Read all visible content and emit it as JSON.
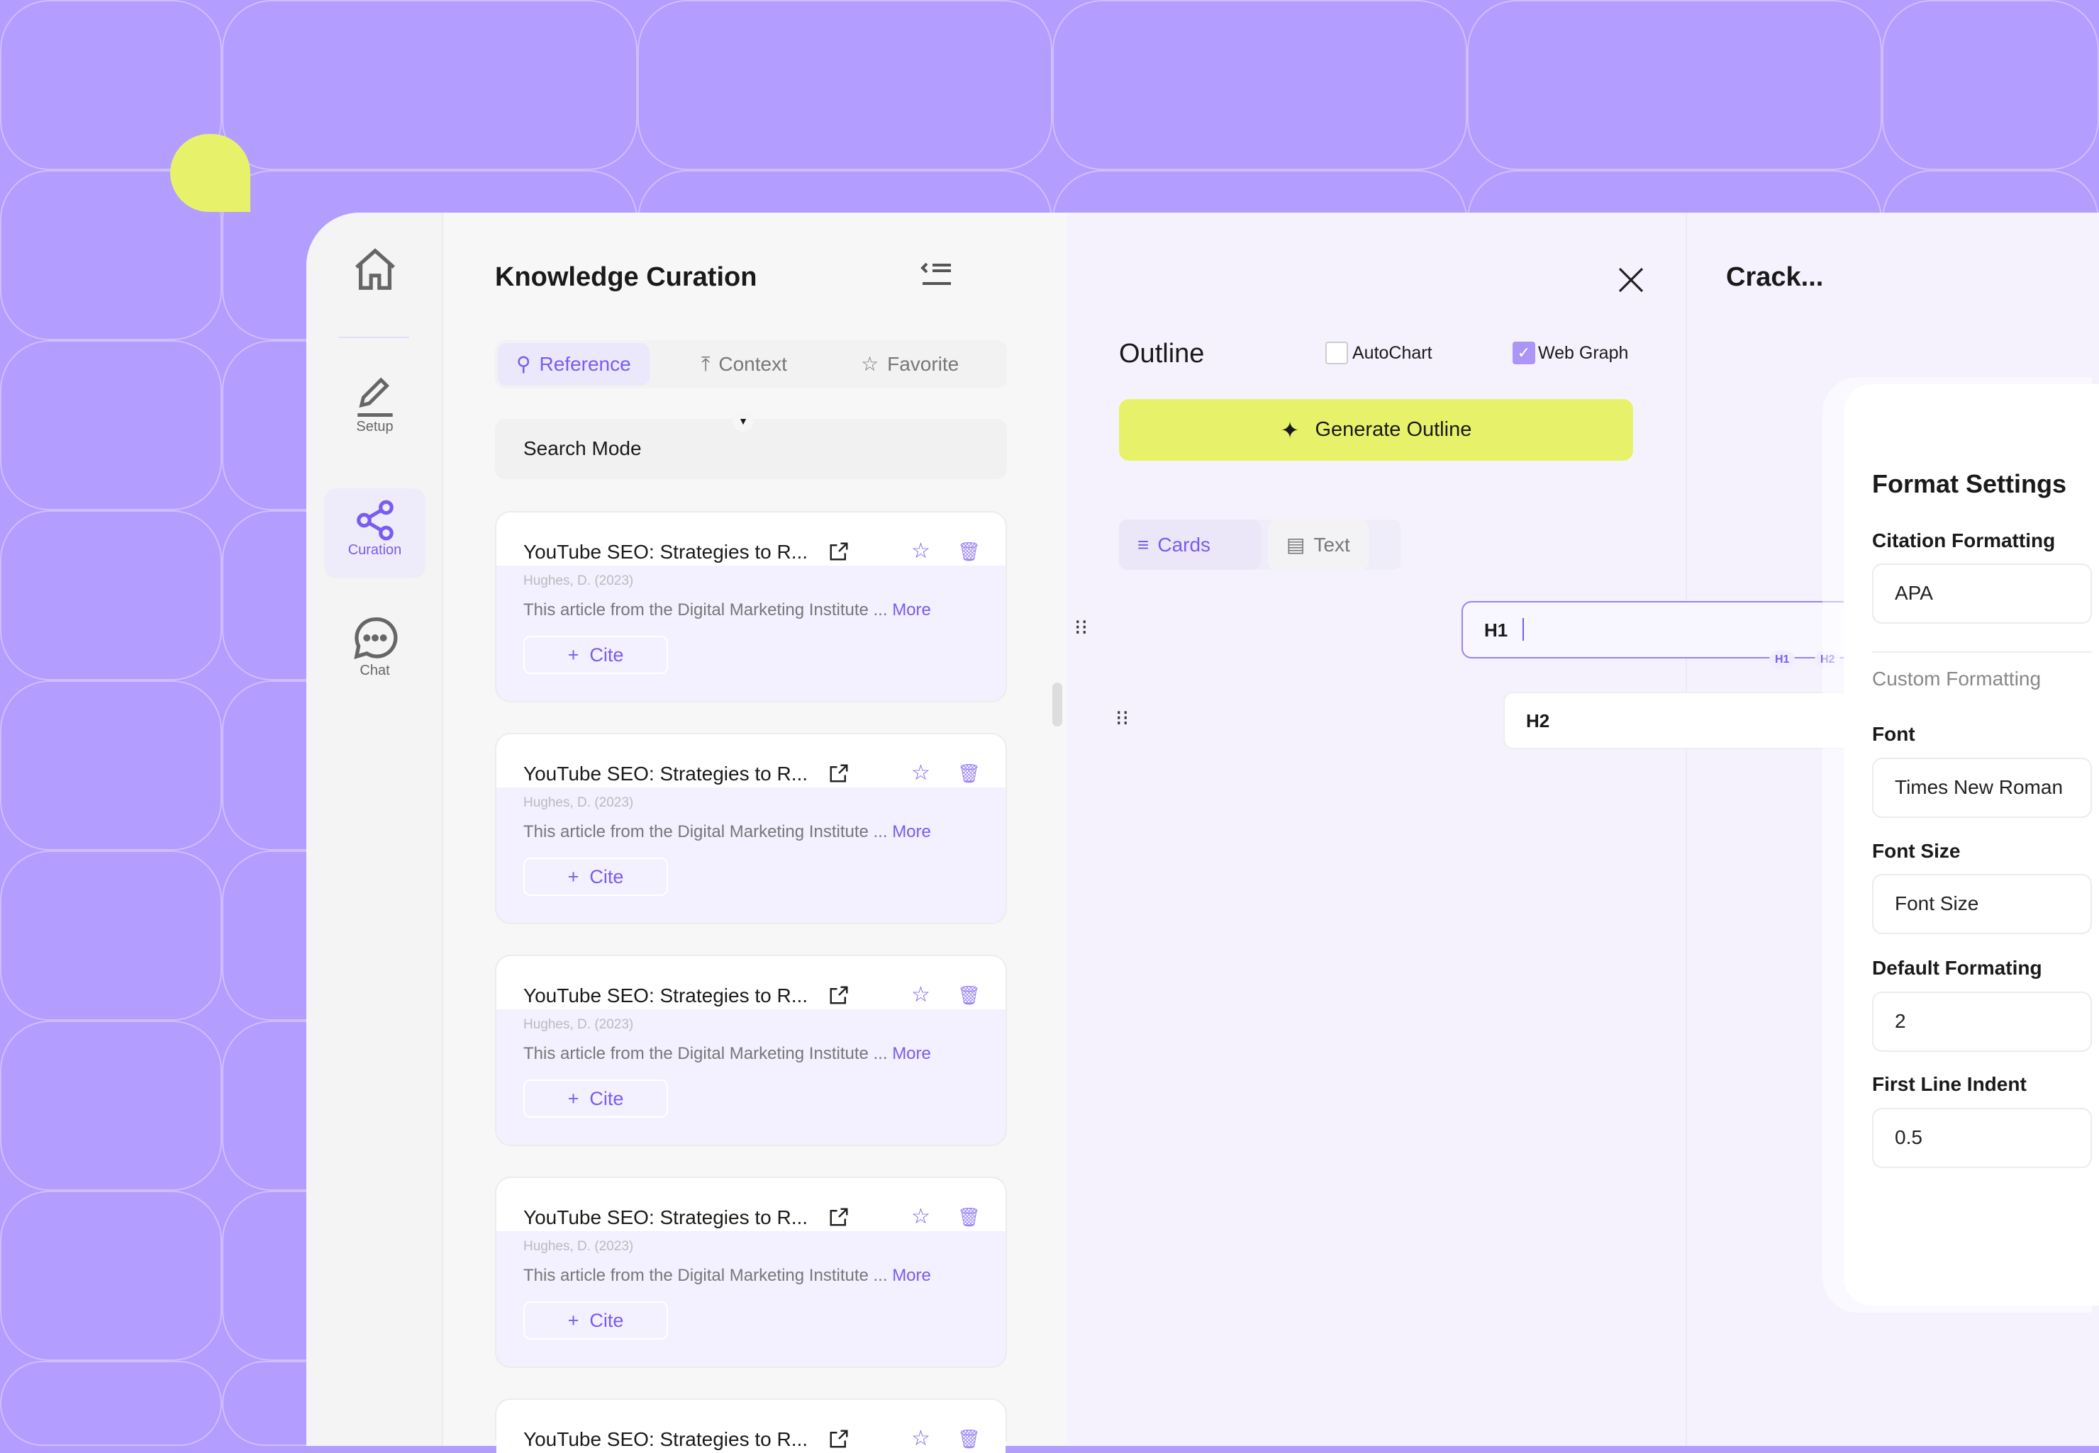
{
  "colors": {
    "background": "#b39dff",
    "accent": "#7a5cf0",
    "button_yellow": "#e7f26a"
  },
  "sidebar": {
    "items": [
      {
        "label": "",
        "icon": "home-icon"
      },
      {
        "label": "Setup",
        "icon": "pencil-icon"
      },
      {
        "label": "Curation",
        "icon": "share-nodes-icon",
        "active": true
      },
      {
        "label": "Chat",
        "icon": "chat-bubble-icon"
      }
    ]
  },
  "curation": {
    "title": "Knowledge Curation",
    "tabs": [
      {
        "label": "Reference",
        "active": true
      },
      {
        "label": "Context"
      },
      {
        "label": "Favorite"
      }
    ],
    "search_mode": "Search Mode",
    "cards": [
      {
        "title": "YouTube SEO: Strategies to R...",
        "author": "Hughes, D. (2023)",
        "desc": "This article from the Digital Marketing Institute ...",
        "more": "More",
        "cite": "Cite"
      },
      {
        "title": "YouTube SEO: Strategies to R...",
        "author": "Hughes, D. (2023)",
        "desc": "This article from the Digital Marketing Institute ...",
        "more": "More",
        "cite": "Cite"
      },
      {
        "title": "YouTube SEO: Strategies to R...",
        "author": "Hughes, D. (2023)",
        "desc": "This article from the Digital Marketing Institute ...",
        "more": "More",
        "cite": "Cite"
      },
      {
        "title": "YouTube SEO: Strategies to R...",
        "author": "Hughes, D. (2023)",
        "desc": "This article from the Digital Marketing Institute ...",
        "more": "More",
        "cite": "Cite"
      },
      {
        "title": "YouTube SEO: Strategies to R...",
        "author": "",
        "desc": "",
        "more": "",
        "cite": ""
      }
    ]
  },
  "outline": {
    "title": "Outline",
    "autochart": {
      "label": "AutoChart",
      "checked": false
    },
    "webgraph": {
      "label": "Web Graph",
      "checked": true
    },
    "generate": "Generate Outline",
    "view_tabs": [
      {
        "label": "Cards",
        "active": true
      },
      {
        "label": "Text"
      }
    ],
    "rows": [
      {
        "value": "H1"
      },
      {
        "value": "H2"
      }
    ],
    "level_chips": [
      "H1",
      "H2"
    ]
  },
  "right": {
    "title": "Crack...",
    "format": {
      "title": "Format Settings",
      "citation_label": "Citation Formatting",
      "citation_value": "APA",
      "custom_label": "Custom Formatting",
      "font_label": "Font",
      "font_value": "Times New Roman",
      "font_size_label": "Font Size",
      "font_size_placeholder": "Font Size",
      "default_label": "Default Formating",
      "default_value": "2",
      "indent_label": "First Line Indent",
      "indent_value": "0.5"
    }
  }
}
